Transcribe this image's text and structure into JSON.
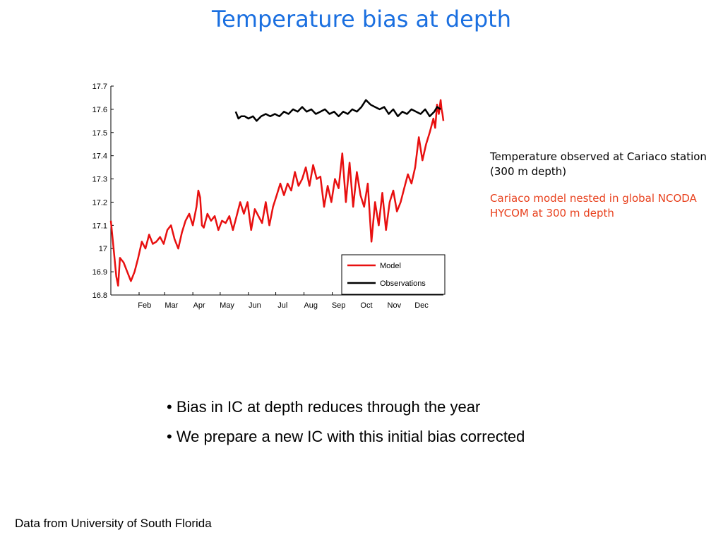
{
  "title": "Temperature bias at depth",
  "annotations": {
    "observed": "Temperature observed at Cariaco station (300 m depth)",
    "model": "Cariaco model nested in global NCODA HYCOM at 300 m depth",
    "model_color": "#e8411e"
  },
  "bullets": [
    "• Bias in IC at depth reduces through the year",
    "• We prepare a new IC with this initial bias corrected"
  ],
  "footer": "Data from University of South Florida",
  "chart_data": {
    "type": "line",
    "ylim": [
      16.8,
      17.7
    ],
    "yticks": [
      "16.8",
      "16.9",
      "17",
      "17.1",
      "17.2",
      "17.3",
      "17.4",
      "17.5",
      "17.6",
      "17.7"
    ],
    "xlim": [
      0,
      365
    ],
    "xtick_labels": [
      "Feb",
      "Mar",
      "Apr",
      "May",
      "Jun",
      "Jul",
      "Aug",
      "Sep",
      "Oct",
      "Nov",
      "Dec"
    ],
    "xtick_days": [
      31,
      59,
      90,
      120,
      151,
      181,
      212,
      243,
      273,
      304,
      334
    ],
    "legend_position": "bottom-right",
    "series": [
      {
        "name": "Model",
        "color": "#e81010",
        "x": [
          0,
          3,
          6,
          8,
          10,
          14,
          18,
          22,
          26,
          30,
          34,
          38,
          42,
          46,
          50,
          54,
          58,
          62,
          66,
          70,
          74,
          78,
          82,
          86,
          90,
          94,
          96,
          98,
          100,
          102,
          106,
          110,
          114,
          118,
          122,
          126,
          130,
          134,
          138,
          142,
          146,
          150,
          154,
          158,
          162,
          166,
          170,
          174,
          178,
          182,
          186,
          190,
          194,
          198,
          202,
          206,
          210,
          214,
          218,
          222,
          226,
          230,
          234,
          238,
          242,
          246,
          250,
          254,
          258,
          262,
          266,
          270,
          274,
          278,
          282,
          286,
          290,
          294,
          298,
          302,
          306,
          310,
          314,
          318,
          322,
          326,
          330,
          334,
          338,
          342,
          346,
          350,
          354,
          356,
          358,
          360,
          362,
          363,
          364,
          365
        ],
        "y": [
          17.12,
          17.0,
          16.88,
          16.84,
          16.96,
          16.94,
          16.9,
          16.86,
          16.9,
          16.96,
          17.03,
          17.0,
          17.06,
          17.02,
          17.03,
          17.05,
          17.02,
          17.08,
          17.1,
          17.04,
          17.0,
          17.07,
          17.12,
          17.15,
          17.1,
          17.18,
          17.25,
          17.22,
          17.1,
          17.09,
          17.15,
          17.12,
          17.14,
          17.08,
          17.12,
          17.11,
          17.14,
          17.08,
          17.14,
          17.2,
          17.15,
          17.2,
          17.08,
          17.17,
          17.14,
          17.11,
          17.2,
          17.1,
          17.18,
          17.23,
          17.28,
          17.23,
          17.28,
          17.25,
          17.33,
          17.27,
          17.3,
          17.35,
          17.27,
          17.36,
          17.3,
          17.31,
          17.18,
          17.27,
          17.2,
          17.3,
          17.26,
          17.41,
          17.2,
          17.37,
          17.18,
          17.33,
          17.23,
          17.18,
          17.28,
          17.03,
          17.2,
          17.1,
          17.24,
          17.08,
          17.2,
          17.25,
          17.16,
          17.2,
          17.26,
          17.32,
          17.28,
          17.35,
          17.48,
          17.38,
          17.45,
          17.5,
          17.56,
          17.52,
          17.62,
          17.58,
          17.64,
          17.6,
          17.58,
          17.55
        ]
      },
      {
        "name": "Observations",
        "color": "#000000",
        "x": [
          137,
          140,
          143,
          147,
          151,
          156,
          160,
          165,
          170,
          175,
          180,
          185,
          190,
          195,
          200,
          205,
          210,
          215,
          220,
          225,
          230,
          235,
          240,
          245,
          250,
          255,
          260,
          265,
          270,
          275,
          280,
          285,
          290,
          295,
          300,
          305,
          310,
          315,
          320,
          325,
          330,
          335,
          340,
          345,
          350,
          355,
          358,
          362
        ],
        "y": [
          17.59,
          17.56,
          17.57,
          17.57,
          17.56,
          17.57,
          17.55,
          17.57,
          17.58,
          17.57,
          17.58,
          17.57,
          17.59,
          17.58,
          17.6,
          17.59,
          17.61,
          17.59,
          17.6,
          17.58,
          17.59,
          17.6,
          17.58,
          17.59,
          17.57,
          17.59,
          17.58,
          17.6,
          17.59,
          17.61,
          17.64,
          17.62,
          17.61,
          17.6,
          17.61,
          17.58,
          17.6,
          17.57,
          17.59,
          17.58,
          17.6,
          17.59,
          17.58,
          17.6,
          17.57,
          17.59,
          17.61,
          17.6
        ]
      }
    ]
  }
}
